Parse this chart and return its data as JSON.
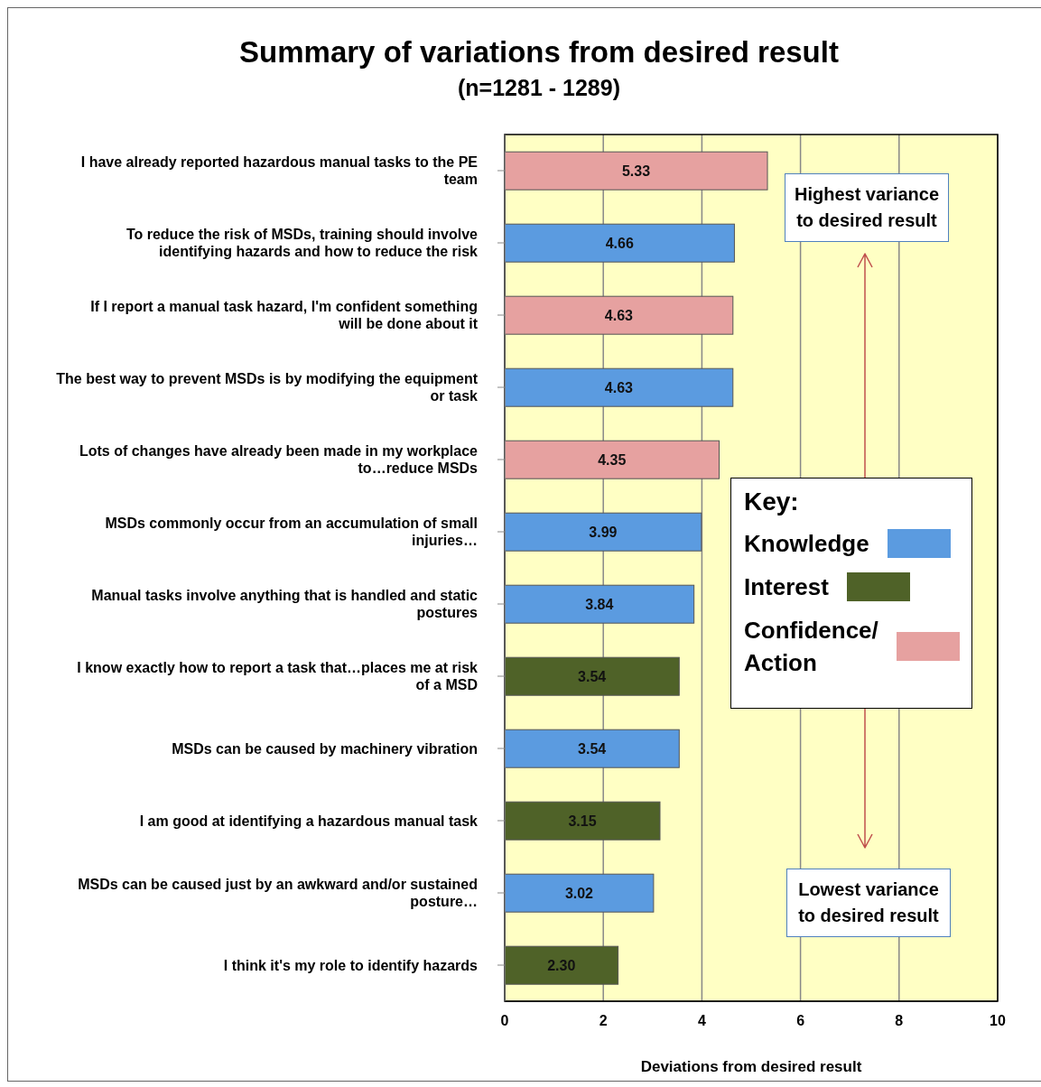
{
  "chart_data": {
    "type": "bar",
    "orientation": "horizontal",
    "stacked": true,
    "title": "Summary of variations from desired result",
    "subtitle": "(n=1281 - 1289)",
    "xlabel": "Deviations from desired result",
    "categories": [
      "I have already reported hazardous manual tasks to the PE team",
      "To reduce the risk of MSDs, training should involve identifying hazards and how to reduce the risk",
      "If I report a manual task hazard, I'm confident something will be done about it",
      "The best way to prevent MSDs is by modifying the equipment or task",
      "Lots of changes have already been made in my workplace to…reduce MSDs",
      "MSDs commonly occur from an accumulation of small injuries…",
      "Manual tasks involve anything that is handled and static postures",
      "I know exactly how to report a task that…places me at risk of a MSD",
      "MSDs can be caused by machinery vibration",
      "I am good at identifying a hazardous manual task",
      "MSDs can be caused just by an awkward and/or sustained posture…",
      "I think it's my role to identify hazards"
    ],
    "series": [
      {
        "name": "Knowledge",
        "color": "#5b9be0",
        "values": [
          null,
          4.66,
          null,
          4.63,
          null,
          3.99,
          3.84,
          null,
          3.54,
          null,
          3.02,
          null
        ],
        "value_labels": [
          null,
          "4.66",
          null,
          "4.63",
          null,
          "3.99",
          "3.84",
          null,
          "3.54",
          null,
          "3.02",
          null
        ]
      },
      {
        "name": "Interest",
        "color": "#4f6228",
        "values": [
          null,
          null,
          null,
          null,
          null,
          null,
          null,
          3.54,
          null,
          3.15,
          null,
          2.3
        ],
        "value_labels": [
          null,
          null,
          null,
          null,
          null,
          null,
          null,
          "3.54",
          null,
          "3.15",
          null,
          "2.30"
        ]
      },
      {
        "name": "Confidence/ Action",
        "color": "#e6a1a0",
        "values": [
          5.33,
          null,
          4.63,
          null,
          4.35,
          null,
          null,
          null,
          null,
          null,
          null,
          null
        ],
        "value_labels": [
          "5.33",
          null,
          "4.63",
          null,
          "4.35",
          null,
          null,
          null,
          null,
          null,
          null,
          null
        ]
      }
    ],
    "xlim": [
      0,
      10
    ],
    "xticks": [
      0,
      2,
      4,
      6,
      8,
      10
    ],
    "grid": "x",
    "legend": "right",
    "legend_title": "Key:",
    "annotations": [
      "Highest variance to desired result",
      "Lowest variance to desired result"
    ]
  }
}
